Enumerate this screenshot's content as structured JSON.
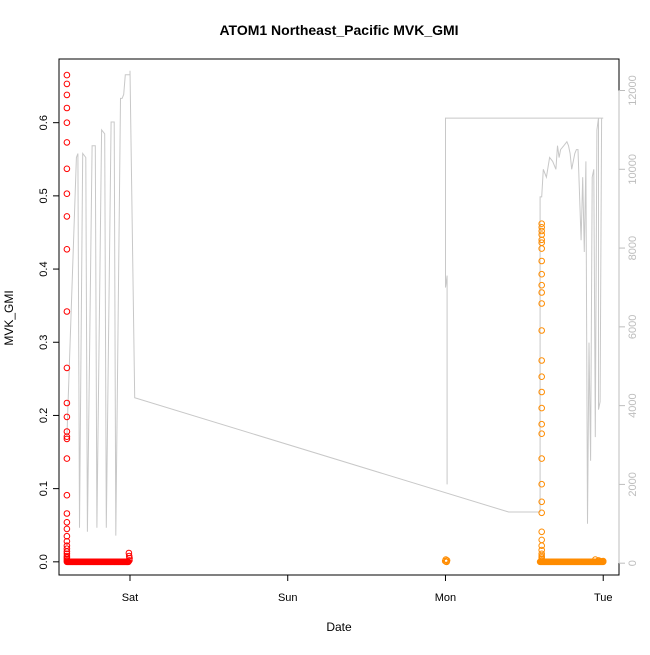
{
  "chart_data": {
    "type": "scatter",
    "title": "ATOM1 Northeast_Pacific MVK_GMI",
    "xlabel": "Date",
    "ylabel": "MVK_GMI",
    "y2label": "",
    "x_ticks": [
      "Sat",
      "Sun",
      "Mon",
      "Tue"
    ],
    "x_tick_positions": [
      1.0,
      2.0,
      3.0,
      4.0
    ],
    "xlim": [
      0.55,
      4.1
    ],
    "ylim": [
      -0.018,
      0.687
    ],
    "y_ticks": [
      0.0,
      0.1,
      0.2,
      0.3,
      0.4,
      0.5,
      0.6
    ],
    "y2lim": [
      -300,
      12800
    ],
    "y2_ticks": [
      0,
      2000,
      4000,
      6000,
      8000,
      10000,
      12000
    ],
    "grid": false,
    "legend": "none",
    "colors": {
      "series_red": "#ff0000",
      "series_orange": "#ff8c00",
      "line_gray": "#c8c8c8",
      "right_axis": "#bdbdbd"
    },
    "series": [
      {
        "color": "#ff0000",
        "marker": "open-circle",
        "x_start": 0.6,
        "x_end": 0.99,
        "baseline_y": 0.0,
        "tail_points": [
          [
            0.993,
            0.012
          ],
          [
            0.995,
            0.008
          ],
          [
            0.997,
            0.005
          ],
          [
            0.996,
            0.002
          ]
        ],
        "x_column": 0.6,
        "column_values": [
          0.665,
          0.653,
          0.638,
          0.62,
          0.6,
          0.573,
          0.537,
          0.503,
          0.472,
          0.427,
          0.342,
          0.265,
          0.217,
          0.198,
          0.178,
          0.171,
          0.168,
          0.141,
          0.091,
          0.066,
          0.054,
          0.045,
          0.035,
          0.028,
          0.022,
          0.018,
          0.014,
          0.011,
          0.008,
          0.006,
          0.004,
          0.002
        ]
      },
      {
        "color": "#ff8c00",
        "marker": "open-circle",
        "x_start": 3.6,
        "x_end": 4.0,
        "baseline_y": 0.0,
        "cluster_points": [
          [
            2.998,
            0.001
          ],
          [
            3.005,
            0.0
          ],
          [
            3.01,
            0.002
          ],
          [
            3.002,
            0.003
          ],
          [
            3.008,
            0.0
          ]
        ],
        "x_column": 3.61,
        "column_values": [
          0.462,
          0.457,
          0.452,
          0.447,
          0.44,
          0.436,
          0.428,
          0.411,
          0.393,
          0.378,
          0.368,
          0.353,
          0.316,
          0.275,
          0.253,
          0.232,
          0.21,
          0.188,
          0.175,
          0.141,
          0.106,
          0.082,
          0.067,
          0.041,
          0.03,
          0.022,
          0.016,
          0.011,
          0.008,
          0.006,
          0.004,
          0.002
        ],
        "tail_points": [
          [
            3.95,
            0.003
          ],
          [
            3.97,
            0.002
          ],
          [
            3.98,
            0.001
          ],
          [
            4.0,
            0.001
          ]
        ]
      }
    ],
    "line_series": {
      "axis": "right",
      "color": "#c8c8c8",
      "points": [
        [
          0.6,
          3200
        ],
        [
          0.66,
          10300
        ],
        [
          0.67,
          10400
        ],
        [
          0.68,
          900
        ],
        [
          0.7,
          10400
        ],
        [
          0.72,
          10300
        ],
        [
          0.73,
          800
        ],
        [
          0.76,
          10600
        ],
        [
          0.78,
          10600
        ],
        [
          0.79,
          900
        ],
        [
          0.82,
          11000
        ],
        [
          0.84,
          10900
        ],
        [
          0.85,
          900
        ],
        [
          0.88,
          11200
        ],
        [
          0.9,
          11200
        ],
        [
          0.91,
          700
        ],
        [
          0.94,
          11800
        ],
        [
          0.95,
          11800
        ],
        [
          0.96,
          11900
        ],
        [
          0.97,
          12400
        ],
        [
          0.98,
          12400
        ],
        [
          0.99,
          12400
        ],
        [
          1.0,
          12400
        ],
        [
          1.0,
          12500
        ],
        [
          1.03,
          4200
        ],
        [
          3.4,
          1300
        ],
        [
          3.6,
          1300
        ],
        [
          3.6,
          9300
        ],
        [
          3.61,
          9300
        ],
        [
          3.62,
          10000
        ],
        [
          3.64,
          9800
        ],
        [
          3.66,
          10300
        ],
        [
          3.68,
          10200
        ],
        [
          3.7,
          10000
        ],
        [
          3.71,
          10600
        ],
        [
          3.72,
          10300
        ],
        [
          3.73,
          10500
        ],
        [
          3.75,
          10600
        ],
        [
          3.77,
          10700
        ],
        [
          3.78,
          10600
        ],
        [
          3.79,
          10400
        ],
        [
          3.8,
          10000
        ],
        [
          3.82,
          10400
        ],
        [
          3.83,
          10500
        ],
        [
          3.84,
          10500
        ],
        [
          3.86,
          8200
        ],
        [
          3.87,
          9800
        ],
        [
          3.88,
          7900
        ],
        [
          3.89,
          10200
        ],
        [
          3.9,
          1000
        ],
        [
          3.91,
          5600
        ],
        [
          3.92,
          2600
        ],
        [
          3.93,
          9800
        ],
        [
          3.94,
          10000
        ],
        [
          3.95,
          3200
        ],
        [
          3.96,
          11000
        ],
        [
          3.97,
          11300
        ],
        [
          3.97,
          3900
        ],
        [
          3.98,
          4100
        ],
        [
          3.99,
          11300
        ],
        [
          4.0,
          11300
        ],
        [
          4.0,
          11300
        ],
        [
          3.0,
          11300
        ],
        [
          3.0,
          7000
        ],
        [
          3.01,
          7300
        ],
        [
          3.01,
          2000
        ]
      ]
    }
  }
}
